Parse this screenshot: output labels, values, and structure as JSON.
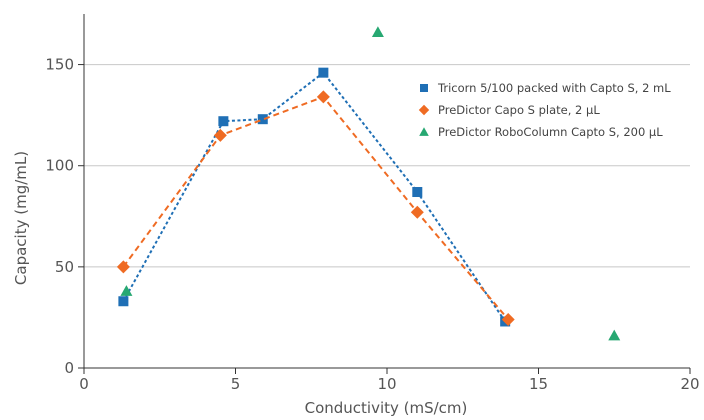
{
  "chart_data": {
    "type": "scatter",
    "title": "",
    "xlabel": "Conductivity (mS/cm)",
    "ylabel": "Capacity (mg/mL)",
    "xlim": [
      0,
      20
    ],
    "ylim": [
      0,
      175
    ],
    "xticks": [
      0,
      5,
      10,
      15,
      20
    ],
    "yticks": [
      0,
      50,
      100,
      150
    ],
    "grid": "horizontal",
    "legend_position": "top-right",
    "series": [
      {
        "name": "Tricorn 5/100 packed with Capto S, 2 mL",
        "marker": "square",
        "color": "#1f6fb5",
        "line": "dotted",
        "x": [
          1.3,
          4.6,
          5.9,
          7.9,
          11.0,
          13.9
        ],
        "y": [
          33,
          122,
          123,
          146,
          87,
          23
        ]
      },
      {
        "name": "PreDictor Capo S plate, 2 µL",
        "marker": "diamond",
        "color": "#ef6b23",
        "line": "dashed",
        "x": [
          1.3,
          4.5,
          7.9,
          11.0,
          14.0
        ],
        "y": [
          50,
          115,
          134,
          77,
          24
        ]
      },
      {
        "name": "PreDictor RoboColumn Capto S, 200 µL",
        "marker": "triangle",
        "color": "#27a872",
        "line": "none",
        "x": [
          1.4,
          9.7,
          17.5
        ],
        "y": [
          38,
          166,
          16
        ]
      }
    ]
  }
}
